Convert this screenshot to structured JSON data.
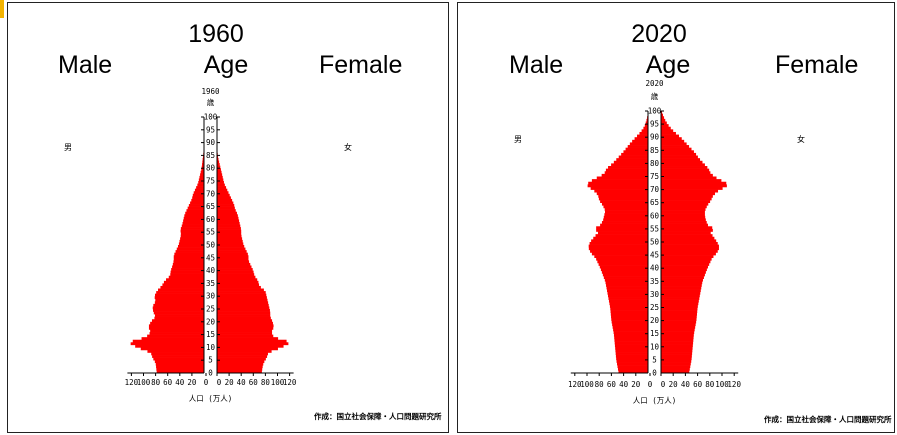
{
  "charts": [
    {
      "title": "1960",
      "left_label": "Male",
      "center_label": "Age",
      "right_label": "Female",
      "inner_year": "1960",
      "age_unit": "歳",
      "male_char": "男",
      "female_char": "女",
      "xlabel": "人口 (万人)",
      "source": "作成：国立社会保障・人口問題研究所"
    },
    {
      "title": "2020",
      "left_label": "Male",
      "center_label": "Age",
      "right_label": "Female",
      "inner_year": "2020",
      "age_unit": "歳",
      "male_char": "男",
      "female_char": "女",
      "xlabel": "人口 (万人)",
      "source": "作成：国立社会保障・人口問題研究所"
    }
  ],
  "colors": {
    "bar": "#ff0000",
    "accent": "#f4b400",
    "axis": "#000000"
  },
  "chart_data": [
    {
      "type": "bar",
      "orientation": "horizontal-pyramid",
      "title": "1960",
      "ylabel": "歳",
      "xlabel": "人口 (万人)",
      "xlim": [
        0,
        120
      ],
      "ylim": [
        0,
        100
      ],
      "y_ticks": [
        0,
        5,
        10,
        15,
        20,
        25,
        30,
        35,
        40,
        45,
        50,
        55,
        60,
        65,
        70,
        75,
        80,
        85,
        90,
        95,
        100
      ],
      "x_ticks": [
        120,
        100,
        80,
        60,
        40,
        20,
        0,
        20,
        40,
        60,
        80,
        100,
        120
      ],
      "series": [
        {
          "name": "男",
          "ages": [
            0,
            2,
            4,
            6,
            8,
            10,
            12,
            14,
            16,
            18,
            20,
            22,
            24,
            26,
            28,
            30,
            32,
            34,
            36,
            38,
            40,
            42,
            44,
            46,
            48,
            50,
            52,
            54,
            56,
            58,
            60,
            62,
            64,
            66,
            68,
            70,
            72,
            74,
            76,
            78,
            80,
            82,
            84,
            86,
            88,
            90
          ],
          "values": [
            78,
            79,
            80,
            85,
            88,
            110,
            125,
            96,
            88,
            92,
            88,
            80,
            84,
            85,
            80,
            82,
            78,
            70,
            65,
            56,
            55,
            52,
            50,
            50,
            46,
            42,
            40,
            38,
            39,
            36,
            34,
            32,
            28,
            24,
            20,
            18,
            14,
            10,
            8,
            6,
            4,
            3,
            2,
            1,
            0.5,
            0
          ]
        },
        {
          "name": "女",
          "ages": [
            0,
            2,
            4,
            6,
            8,
            10,
            12,
            14,
            16,
            18,
            20,
            22,
            24,
            26,
            28,
            30,
            32,
            34,
            36,
            38,
            40,
            42,
            44,
            46,
            48,
            50,
            52,
            54,
            56,
            58,
            60,
            62,
            64,
            66,
            68,
            70,
            72,
            74,
            76,
            78,
            80,
            82,
            84,
            86,
            88,
            90
          ],
          "values": [
            74,
            75,
            77,
            82,
            85,
            106,
            122,
            94,
            90,
            94,
            92,
            88,
            88,
            86,
            84,
            82,
            80,
            70,
            68,
            62,
            60,
            56,
            52,
            52,
            48,
            44,
            42,
            40,
            40,
            38,
            36,
            34,
            30,
            28,
            24,
            20,
            16,
            12,
            10,
            8,
            6,
            4,
            2,
            1,
            0.5,
            0
          ]
        }
      ]
    },
    {
      "type": "bar",
      "orientation": "horizontal-pyramid",
      "title": "2020",
      "ylabel": "歳",
      "xlabel": "人口 (万人)",
      "xlim": [
        0,
        120
      ],
      "ylim": [
        0,
        100
      ],
      "y_ticks": [
        0,
        5,
        10,
        15,
        20,
        25,
        30,
        35,
        40,
        45,
        50,
        55,
        60,
        65,
        70,
        75,
        80,
        85,
        90,
        95,
        100
      ],
      "x_ticks": [
        120,
        100,
        80,
        60,
        40,
        20,
        0,
        20,
        40,
        60,
        80,
        100,
        120
      ],
      "series": [
        {
          "name": "男",
          "ages": [
            0,
            5,
            10,
            15,
            20,
            25,
            30,
            35,
            40,
            44,
            46,
            48,
            50,
            52,
            54,
            55,
            56,
            58,
            60,
            62,
            64,
            66,
            68,
            70,
            71,
            72,
            73,
            74,
            76,
            78,
            80,
            82,
            84,
            86,
            88,
            90,
            92,
            94,
            96,
            98,
            100
          ],
          "values": [
            48,
            52,
            54,
            56,
            60,
            62,
            66,
            70,
            78,
            86,
            94,
            98,
            95,
            88,
            80,
            90,
            80,
            74,
            72,
            70,
            74,
            80,
            82,
            90,
            98,
            100,
            96,
            88,
            72,
            68,
            58,
            50,
            42,
            35,
            28,
            20,
            12,
            6,
            3,
            1,
            0
          ]
        },
        {
          "name": "女",
          "ages": [
            0,
            5,
            10,
            15,
            20,
            25,
            30,
            35,
            40,
            44,
            46,
            48,
            50,
            52,
            54,
            55,
            56,
            58,
            60,
            62,
            64,
            66,
            68,
            70,
            71,
            72,
            73,
            74,
            76,
            78,
            80,
            82,
            84,
            86,
            88,
            90,
            92,
            94,
            96,
            98,
            100
          ],
          "values": [
            46,
            50,
            52,
            54,
            58,
            60,
            64,
            68,
            76,
            84,
            92,
            96,
            92,
            86,
            80,
            90,
            78,
            74,
            72,
            72,
            76,
            82,
            86,
            96,
            106,
            110,
            104,
            94,
            82,
            78,
            70,
            62,
            56,
            48,
            40,
            32,
            22,
            14,
            8,
            4,
            1
          ]
        }
      ]
    }
  ]
}
